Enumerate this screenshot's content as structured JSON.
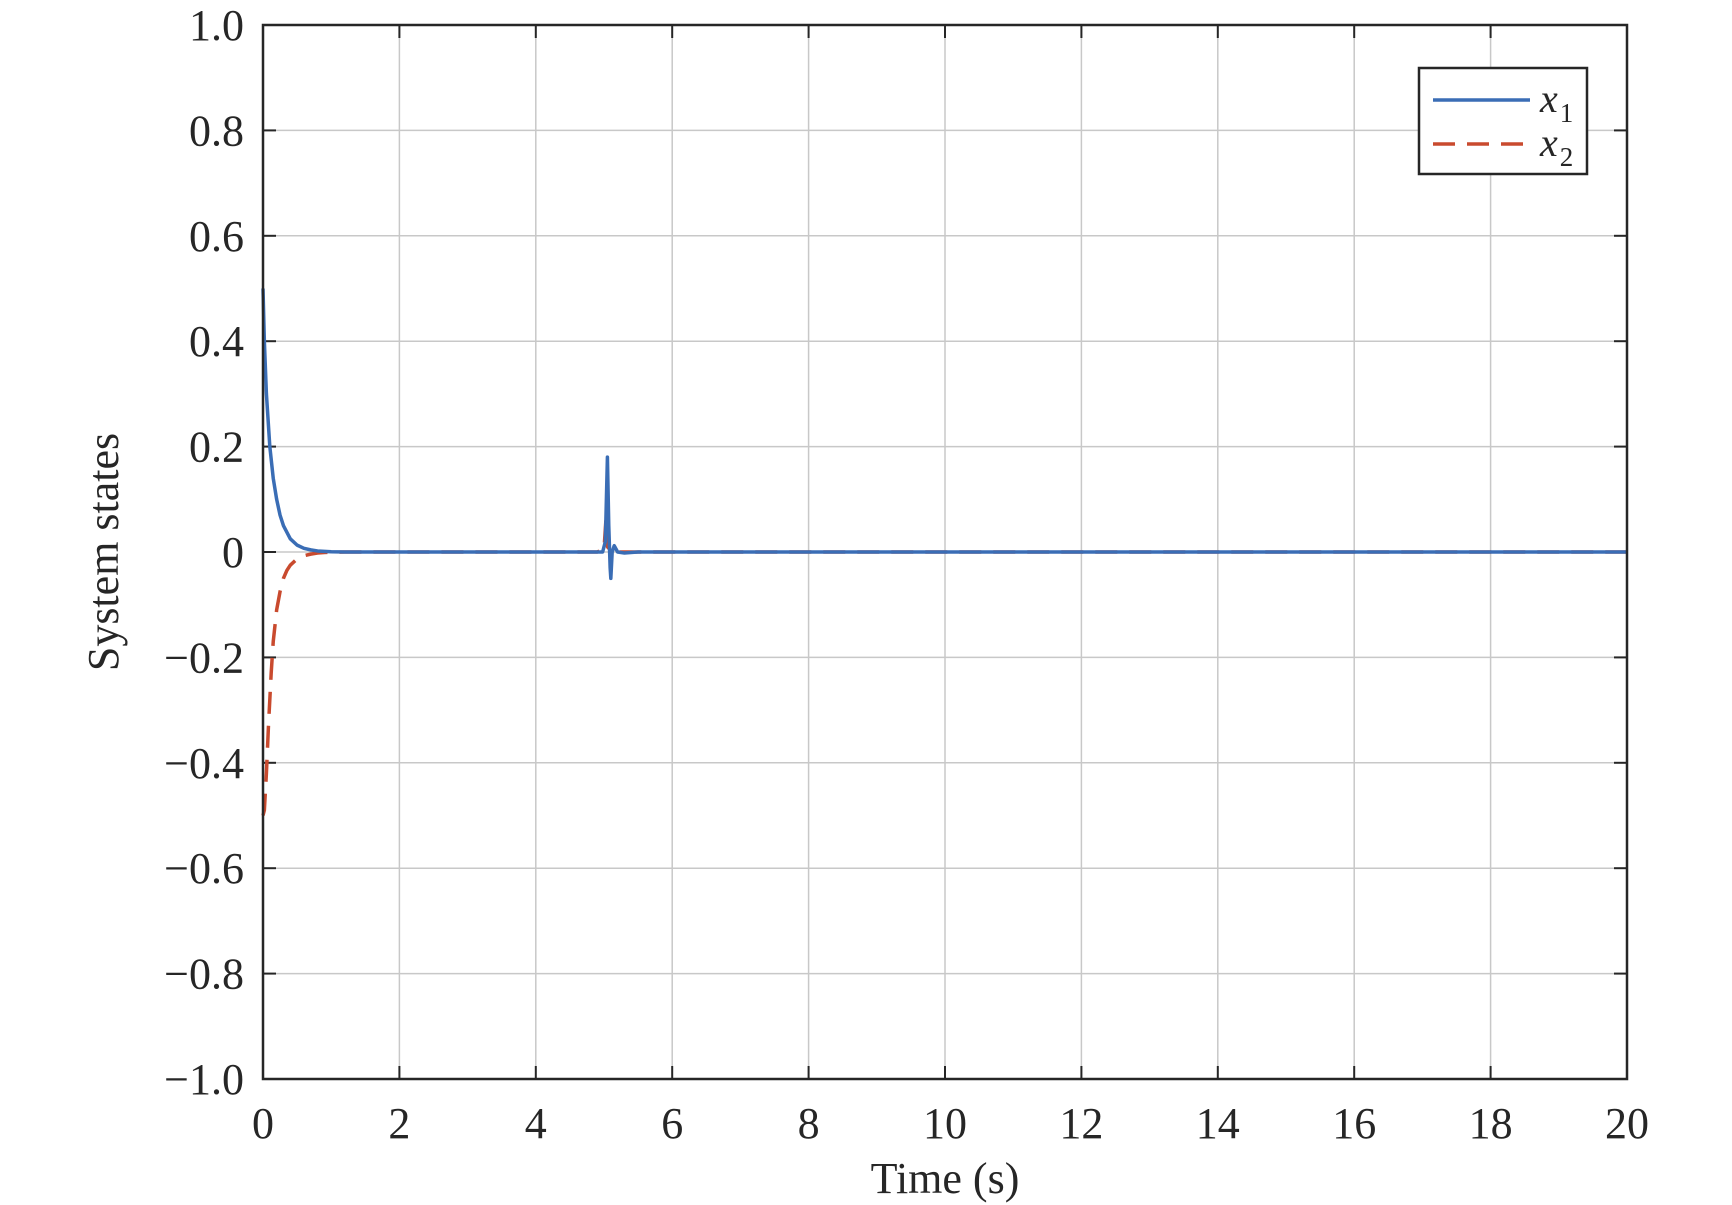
{
  "chart_data": {
    "type": "line",
    "xlabel": "Time (s)",
    "ylabel": "System states",
    "xlim": [
      0,
      20
    ],
    "ylim": [
      -1.0,
      1.0
    ],
    "xticks": [
      0,
      2,
      4,
      6,
      8,
      10,
      12,
      14,
      16,
      18,
      20
    ],
    "xtick_labels": [
      "0",
      "2",
      "4",
      "6",
      "8",
      "10",
      "12",
      "14",
      "16",
      "18",
      "20"
    ],
    "yticks": [
      1.0,
      0.8,
      0.6,
      0.4,
      0.2,
      0,
      -0.2,
      -0.4,
      -0.6,
      -0.8,
      -1.0
    ],
    "ytick_labels": [
      "1.0",
      "0.8",
      "0.6",
      "0.4",
      "0.2",
      "0",
      "−0.2",
      "−0.4",
      "−0.6",
      "−0.8",
      "−1.0"
    ],
    "grid": true,
    "legend_position": "top-right",
    "series": [
      {
        "name": "x",
        "subscript": "1",
        "color": "#3a6db5",
        "line_style": "solid",
        "x": [
          0,
          0.02,
          0.05,
          0.1,
          0.15,
          0.2,
          0.25,
          0.3,
          0.4,
          0.5,
          0.6,
          0.7,
          0.8,
          1.0,
          1.2,
          1.5,
          2,
          3,
          4,
          4.9,
          4.98,
          5.02,
          5.05,
          5.07,
          5.09,
          5.1,
          5.12,
          5.15,
          5.2,
          5.3,
          5.5,
          6,
          8,
          10,
          12,
          14,
          16,
          18,
          20
        ],
        "y": [
          0.5,
          0.4,
          0.3,
          0.2,
          0.14,
          0.1,
          0.07,
          0.05,
          0.025,
          0.013,
          0.007,
          0.004,
          0.002,
          0.0005,
          0.0001,
          0,
          0,
          0,
          0,
          0,
          0,
          0.02,
          0.18,
          0.05,
          -0.03,
          -0.05,
          0.0,
          0.012,
          0.0,
          -0.002,
          0,
          0,
          0,
          0,
          0,
          0,
          0,
          0,
          0
        ]
      },
      {
        "name": "x",
        "subscript": "2",
        "color": "#c94a2e",
        "line_style": "dashed",
        "x": [
          0,
          0.02,
          0.05,
          0.08,
          0.12,
          0.15,
          0.2,
          0.25,
          0.3,
          0.35,
          0.4,
          0.5,
          0.6,
          0.7,
          0.8,
          0.9,
          1.0,
          1.2,
          1.5,
          2,
          3,
          4,
          4.9,
          5.0,
          5.03,
          5.05,
          5.08,
          5.12,
          5.2,
          5.5,
          6,
          8,
          10,
          12,
          14,
          16,
          18,
          20
        ],
        "y": [
          -0.5,
          -0.49,
          -0.42,
          -0.33,
          -0.23,
          -0.17,
          -0.11,
          -0.075,
          -0.05,
          -0.035,
          -0.025,
          -0.013,
          -0.007,
          -0.004,
          -0.002,
          -0.001,
          -0.0005,
          -0.0001,
          0,
          0,
          0,
          0,
          0,
          0.005,
          0.065,
          0.01,
          0.005,
          0,
          0,
          0,
          0,
          0,
          0,
          0,
          0,
          0,
          0,
          0
        ]
      }
    ]
  }
}
